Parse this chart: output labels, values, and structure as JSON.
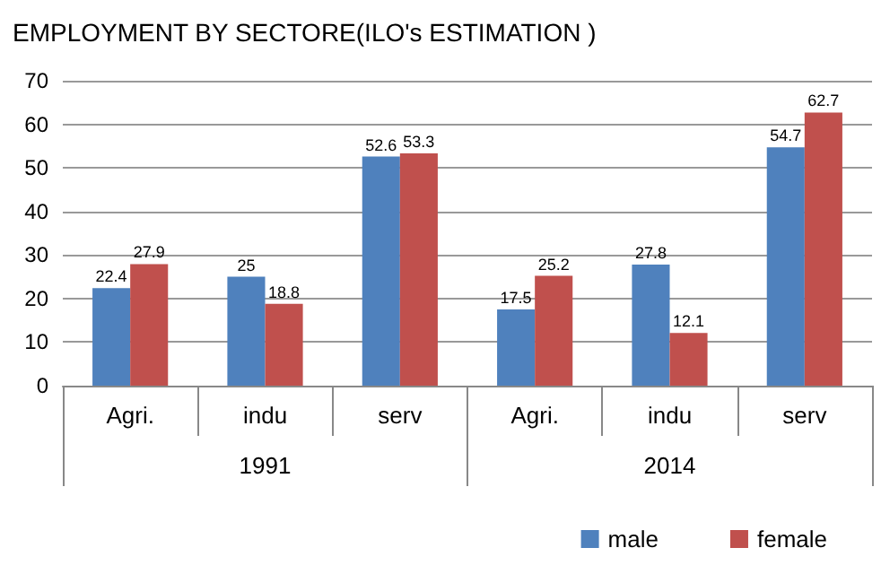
{
  "chart_data": {
    "type": "bar",
    "title": "EMPLOYMENT BY SECTORE(ILO's ESTIMATION )",
    "categories": [
      "Agri.",
      "indu",
      "serv",
      "Agri.",
      "indu",
      "serv"
    ],
    "series": [
      {
        "name": "male",
        "color": "#4f81bd",
        "values": [
          22.4,
          25,
          52.6,
          17.5,
          27.8,
          54.7
        ]
      },
      {
        "name": "female",
        "color": "#c0504d",
        "values": [
          27.9,
          18.8,
          53.3,
          25.2,
          12.1,
          62.7
        ]
      }
    ],
    "annotations": [
      "1991",
      "2014"
    ],
    "ylim": [
      0,
      70
    ],
    "yticks": [
      0,
      10,
      20,
      30,
      40,
      50,
      60,
      70
    ],
    "grid": "y",
    "legend": "bottom right",
    "data_labels": true
  }
}
